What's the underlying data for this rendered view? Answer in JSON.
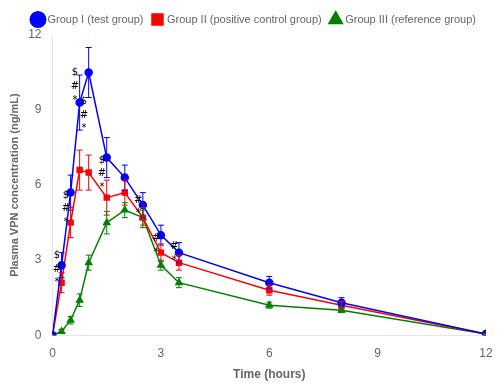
{
  "chart_data": {
    "type": "line",
    "x": [
      0,
      0.25,
      0.5,
      0.75,
      1.0,
      1.5,
      2.0,
      2.5,
      3.0,
      3.5,
      6.0,
      8.0,
      12.0
    ],
    "series": [
      {
        "name": "Group I (test group)",
        "color": "#0000FF",
        "marker": "circle",
        "line_style": "solid",
        "values": [
          0,
          2.8,
          5.7,
          9.3,
          10.5,
          7.1,
          6.3,
          5.2,
          4.0,
          3.3,
          2.1,
          1.3,
          0.05
        ],
        "errors": [
          0,
          0.5,
          0.7,
          1.1,
          1.0,
          0.8,
          0.5,
          0.5,
          0.4,
          0.4,
          0.25,
          0.2,
          0.02
        ]
      },
      {
        "name": "Group II (positive control group)",
        "color": "#FF0000",
        "marker": "square",
        "line_style": "solid",
        "values": [
          0,
          2.1,
          4.5,
          6.6,
          6.5,
          5.5,
          5.7,
          4.7,
          3.3,
          2.9,
          1.8,
          1.2,
          0.05
        ],
        "errors": [
          0,
          0.4,
          0.6,
          0.8,
          0.7,
          0.7,
          0.5,
          0.4,
          0.35,
          0.3,
          0.2,
          0.15,
          0.02
        ]
      },
      {
        "name": "Group III (reference group)",
        "color": "#008000",
        "marker": "triangle",
        "line_style": "solid",
        "values": [
          0,
          0.15,
          0.6,
          1.4,
          2.9,
          4.5,
          5.0,
          4.7,
          2.8,
          2.1,
          1.2,
          1.0,
          0.05
        ],
        "errors": [
          0,
          0.08,
          0.15,
          0.25,
          0.3,
          0.45,
          0.3,
          0.3,
          0.2,
          0.2,
          0.12,
          0.1,
          0.02
        ]
      }
    ],
    "x_label": "Time (hours)",
    "y_label": "Plasma VPN concentration (ng/mL)",
    "xlim": [
      0,
      12
    ],
    "ylim": [
      0,
      12
    ],
    "xticks": [
      0,
      3,
      6,
      9,
      12
    ],
    "yticks": [
      0,
      3,
      6,
      9,
      12
    ],
    "grid": false,
    "legend": "top-right",
    "annotations": [
      {
        "text": "$",
        "x": 0.12,
        "y": 3.0
      },
      {
        "text": "#",
        "x": 0.12,
        "y": 2.45
      },
      {
        "text": "*",
        "x": 0.12,
        "y": 1.9
      },
      {
        "text": "$",
        "x": 0.37,
        "y": 5.4
      },
      {
        "text": "#",
        "x": 0.37,
        "y": 4.85
      },
      {
        "text": "*",
        "x": 0.37,
        "y": 4.3
      },
      {
        "text": "$",
        "x": 0.62,
        "y": 10.3
      },
      {
        "text": "#",
        "x": 0.62,
        "y": 9.75
      },
      {
        "text": "*",
        "x": 0.62,
        "y": 9.2
      },
      {
        "text": "$",
        "x": 0.87,
        "y": 9.15
      },
      {
        "text": "#",
        "x": 0.87,
        "y": 8.6
      },
      {
        "text": "*",
        "x": 0.87,
        "y": 8.05
      },
      {
        "text": "$",
        "x": 1.37,
        "y": 6.8
      },
      {
        "text": "#",
        "x": 1.37,
        "y": 6.25
      },
      {
        "text": "*",
        "x": 1.37,
        "y": 5.7
      },
      {
        "text": "#",
        "x": 2.37,
        "y": 5.2
      },
      {
        "text": "*",
        "x": 2.37,
        "y": 4.65
      },
      {
        "text": "#",
        "x": 2.87,
        "y": 3.65
      },
      {
        "text": "*",
        "x": 2.87,
        "y": 3.1
      },
      {
        "text": "#",
        "x": 3.37,
        "y": 3.35
      },
      {
        "text": "*",
        "x": 3.37,
        "y": 2.8
      }
    ]
  }
}
